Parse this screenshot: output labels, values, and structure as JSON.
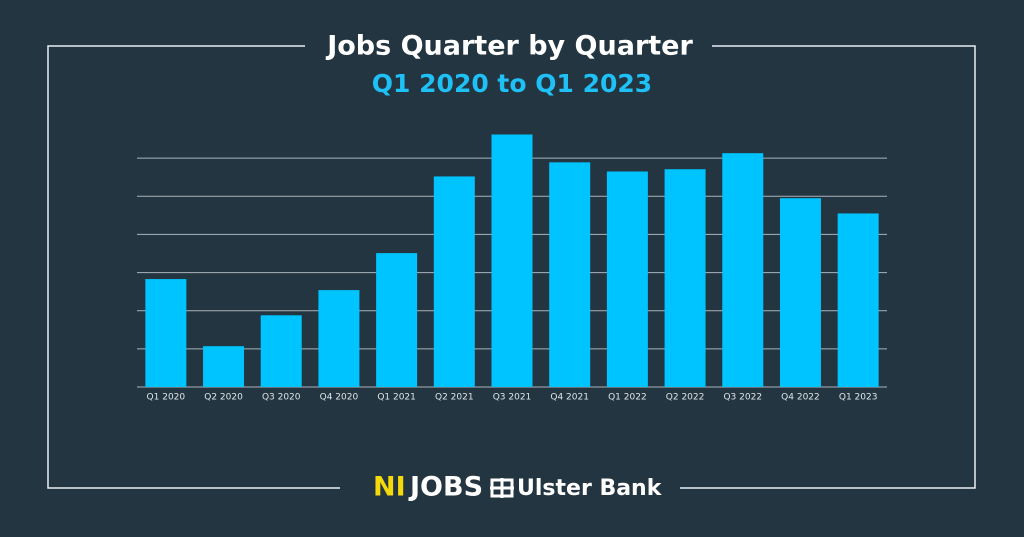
{
  "chart_data": {
    "type": "bar",
    "title": "Jobs Quarter by Quarter",
    "subtitle": "Q1 2020 to Q1 2023",
    "categories": [
      "Q1 2020",
      "Q2 2020",
      "Q3 2020",
      "Q4 2020",
      "Q1 2021",
      "Q2 2021",
      "Q3 2021",
      "Q4 2021",
      "Q1 2022",
      "Q2 2022",
      "Q3 2022",
      "Q4 2022",
      "Q1 2023"
    ],
    "values": [
      2.83,
      1.07,
      1.88,
      2.54,
      3.51,
      5.52,
      6.62,
      5.89,
      5.65,
      5.71,
      6.13,
      4.95,
      4.55
    ],
    "color": "#00c4ff",
    "ylim": [
      0,
      7
    ],
    "yticks": [
      0,
      1,
      2,
      3,
      4,
      5,
      6
    ],
    "grid": true
  },
  "footer": {
    "logo_1_left": "NI",
    "logo_1_right": "JOBS",
    "logo_2": "Ulster Bank"
  }
}
